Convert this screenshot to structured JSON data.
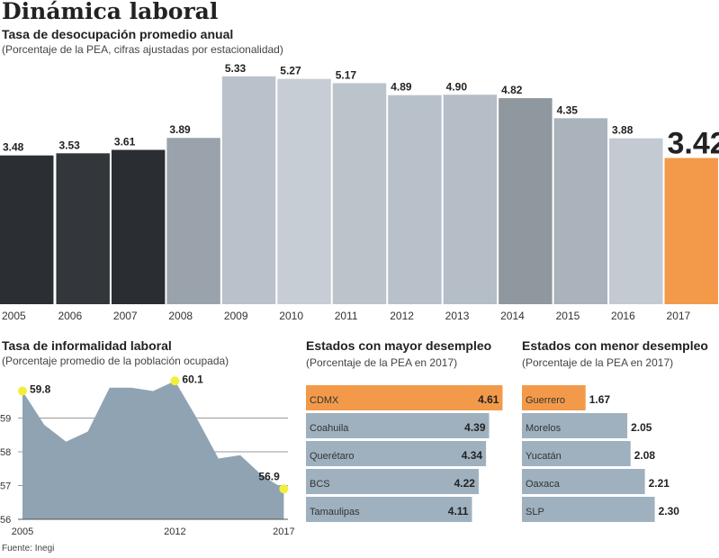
{
  "title": "Dinámica laboral",
  "chart_data": [
    {
      "type": "bar",
      "title": "Tasa de desocupación promedio anual",
      "subtitle": "(Porcentaje de la PEA, cifras ajustadas por estacionalidad)",
      "categories": [
        "2005",
        "2006",
        "2007",
        "2008",
        "2009",
        "2010",
        "2011",
        "2012",
        "2013",
        "2014",
        "2015",
        "2016",
        "2017"
      ],
      "values": [
        3.48,
        3.53,
        3.61,
        3.89,
        5.33,
        5.27,
        5.17,
        4.89,
        4.9,
        4.82,
        4.35,
        3.88,
        3.42
      ],
      "labels": [
        "3.48",
        "3.53",
        "3.61",
        "3.89",
        "5.33",
        "5.27",
        "5.17",
        "4.89",
        "4.90",
        "4.82",
        "4.35",
        "3.88",
        "3.42"
      ],
      "highlight_color": "#f39a4a",
      "bar_color": "#9aa7b2"
    },
    {
      "type": "area",
      "title": "Tasa de informalidad laboral",
      "subtitle": "(Porcentaje promedio de la población ocupada)",
      "x": [
        2005,
        2006,
        2007,
        2008,
        2009,
        2010,
        2011,
        2012,
        2013,
        2014,
        2015,
        2016,
        2017
      ],
      "values": [
        59.8,
        58.8,
        58.3,
        58.6,
        59.9,
        59.9,
        59.8,
        60.1,
        59.0,
        57.8,
        57.9,
        57.3,
        56.9
      ],
      "x_ticks": [
        "2005",
        "2012",
        "2017"
      ],
      "y_ticks": [
        "56",
        "57",
        "58",
        "59"
      ],
      "ylim": [
        56,
        60.2
      ],
      "annotations": [
        {
          "x": 2005,
          "label": "59.8"
        },
        {
          "x": 2012,
          "label": "60.1"
        },
        {
          "x": 2017,
          "label": "56.9"
        }
      ],
      "fill_color": "#8fa3b3",
      "marker_color": "#f2ef3a"
    },
    {
      "type": "bar",
      "orientation": "horizontal",
      "title": "Estados con mayor desempleo",
      "subtitle": "(Porcentaje de la PEA en 2017)",
      "categories": [
        "CDMX",
        "Coahuila",
        "Querétaro",
        "BCS",
        "Tamaulipas"
      ],
      "values": [
        4.61,
        4.39,
        4.34,
        4.22,
        4.11
      ],
      "labels": [
        "4.61",
        "4.39",
        "4.34",
        "4.22",
        "4.11"
      ]
    },
    {
      "type": "bar",
      "orientation": "horizontal",
      "title": "Estados con menor desempleo",
      "subtitle": "(Porcentaje de la PEA en 2017)",
      "categories": [
        "Guerrero",
        "Morelos",
        "Yucatán",
        "Oaxaca",
        "SLP"
      ],
      "values": [
        1.67,
        2.05,
        2.08,
        2.21,
        2.3
      ],
      "labels": [
        "1.67",
        "2.05",
        "2.08",
        "2.21",
        "2.30"
      ]
    }
  ],
  "source": "Fuente: Inegi"
}
